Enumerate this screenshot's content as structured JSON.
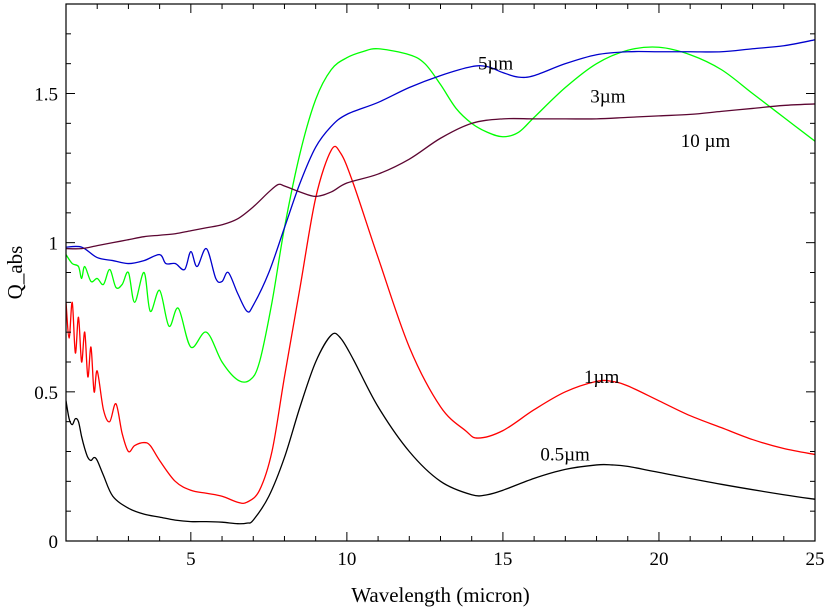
{
  "chart_data": {
    "type": "line",
    "xlabel": "Wavelength (micron)",
    "ylabel": "Q_abs",
    "xlim": [
      1,
      25
    ],
    "ylim": [
      0,
      1.8
    ],
    "grid": false,
    "x_ticks": [
      5,
      10,
      15,
      20,
      25
    ],
    "y_ticks": [
      0,
      0.5,
      1,
      1.5
    ],
    "y_tick_labels": [
      "0",
      "0.5",
      "1",
      "1.5"
    ],
    "x_minor_step": 1,
    "y_minor_step": 0.1,
    "series": [
      {
        "name": "0.5µm",
        "color": "#000000",
        "points": [
          [
            1.0,
            0.47
          ],
          [
            1.1,
            0.41
          ],
          [
            1.2,
            0.39
          ],
          [
            1.3,
            0.41
          ],
          [
            1.4,
            0.4
          ],
          [
            1.5,
            0.35
          ],
          [
            1.6,
            0.31
          ],
          [
            1.7,
            0.28
          ],
          [
            1.8,
            0.27
          ],
          [
            1.9,
            0.28
          ],
          [
            2.0,
            0.27
          ],
          [
            2.2,
            0.22
          ],
          [
            2.5,
            0.15
          ],
          [
            3.0,
            0.11
          ],
          [
            3.5,
            0.09
          ],
          [
            4.0,
            0.08
          ],
          [
            4.5,
            0.07
          ],
          [
            5.0,
            0.065
          ],
          [
            5.5,
            0.065
          ],
          [
            6.0,
            0.063
          ],
          [
            6.5,
            0.058
          ],
          [
            6.8,
            0.06
          ],
          [
            7.0,
            0.07
          ],
          [
            7.5,
            0.15
          ],
          [
            8.0,
            0.28
          ],
          [
            8.5,
            0.45
          ],
          [
            9.0,
            0.6
          ],
          [
            9.5,
            0.69
          ],
          [
            9.8,
            0.68
          ],
          [
            10.2,
            0.61
          ],
          [
            11.0,
            0.45
          ],
          [
            12.0,
            0.3
          ],
          [
            13.0,
            0.2
          ],
          [
            14.0,
            0.155
          ],
          [
            14.5,
            0.155
          ],
          [
            15.0,
            0.17
          ],
          [
            16.0,
            0.21
          ],
          [
            17.0,
            0.24
          ],
          [
            18.0,
            0.255
          ],
          [
            18.5,
            0.255
          ],
          [
            19.0,
            0.25
          ],
          [
            20.0,
            0.23
          ],
          [
            22.0,
            0.19
          ],
          [
            24.0,
            0.155
          ],
          [
            25.0,
            0.14
          ]
        ]
      },
      {
        "name": "1µm",
        "color": "#ff0000",
        "points": [
          [
            1.0,
            0.8
          ],
          [
            1.1,
            0.68
          ],
          [
            1.2,
            0.8
          ],
          [
            1.3,
            0.63
          ],
          [
            1.4,
            0.75
          ],
          [
            1.5,
            0.6
          ],
          [
            1.6,
            0.7
          ],
          [
            1.7,
            0.55
          ],
          [
            1.8,
            0.65
          ],
          [
            1.9,
            0.5
          ],
          [
            2.0,
            0.57
          ],
          [
            2.2,
            0.44
          ],
          [
            2.4,
            0.4
          ],
          [
            2.6,
            0.46
          ],
          [
            2.8,
            0.36
          ],
          [
            3.0,
            0.3
          ],
          [
            3.2,
            0.32
          ],
          [
            3.5,
            0.33
          ],
          [
            3.7,
            0.32
          ],
          [
            4.0,
            0.27
          ],
          [
            4.5,
            0.2
          ],
          [
            5.0,
            0.17
          ],
          [
            5.5,
            0.16
          ],
          [
            6.0,
            0.15
          ],
          [
            6.5,
            0.13
          ],
          [
            6.8,
            0.13
          ],
          [
            7.2,
            0.17
          ],
          [
            7.6,
            0.3
          ],
          [
            8.0,
            0.55
          ],
          [
            8.5,
            0.85
          ],
          [
            9.0,
            1.15
          ],
          [
            9.5,
            1.31
          ],
          [
            9.8,
            1.3
          ],
          [
            10.2,
            1.2
          ],
          [
            11.0,
            0.95
          ],
          [
            12.0,
            0.65
          ],
          [
            13.0,
            0.45
          ],
          [
            13.8,
            0.37
          ],
          [
            14.2,
            0.345
          ],
          [
            15.0,
            0.37
          ],
          [
            16.0,
            0.44
          ],
          [
            17.0,
            0.5
          ],
          [
            18.0,
            0.535
          ],
          [
            18.5,
            0.535
          ],
          [
            19.0,
            0.52
          ],
          [
            20.0,
            0.47
          ],
          [
            21.0,
            0.42
          ],
          [
            22.0,
            0.38
          ],
          [
            23.0,
            0.34
          ],
          [
            24.0,
            0.31
          ],
          [
            25.0,
            0.29
          ]
        ]
      },
      {
        "name": "3µm",
        "color": "#00ff00",
        "points": [
          [
            1.0,
            0.96
          ],
          [
            1.2,
            0.93
          ],
          [
            1.4,
            0.92
          ],
          [
            1.5,
            0.88
          ],
          [
            1.6,
            0.92
          ],
          [
            1.8,
            0.87
          ],
          [
            2.0,
            0.88
          ],
          [
            2.2,
            0.86
          ],
          [
            2.4,
            0.91
          ],
          [
            2.6,
            0.85
          ],
          [
            2.8,
            0.86
          ],
          [
            3.0,
            0.9
          ],
          [
            3.2,
            0.8
          ],
          [
            3.5,
            0.9
          ],
          [
            3.7,
            0.77
          ],
          [
            4.0,
            0.84
          ],
          [
            4.3,
            0.72
          ],
          [
            4.6,
            0.78
          ],
          [
            5.0,
            0.65
          ],
          [
            5.5,
            0.7
          ],
          [
            6.0,
            0.6
          ],
          [
            6.5,
            0.54
          ],
          [
            6.9,
            0.54
          ],
          [
            7.2,
            0.6
          ],
          [
            7.6,
            0.8
          ],
          [
            8.0,
            1.05
          ],
          [
            8.5,
            1.3
          ],
          [
            9.0,
            1.48
          ],
          [
            9.5,
            1.58
          ],
          [
            10.0,
            1.62
          ],
          [
            10.5,
            1.64
          ],
          [
            11.0,
            1.65
          ],
          [
            12.0,
            1.63
          ],
          [
            12.5,
            1.6
          ],
          [
            13.0,
            1.53
          ],
          [
            13.5,
            1.45
          ],
          [
            14.0,
            1.4
          ],
          [
            14.5,
            1.37
          ],
          [
            15.0,
            1.355
          ],
          [
            15.5,
            1.37
          ],
          [
            16.0,
            1.42
          ],
          [
            17.0,
            1.52
          ],
          [
            18.0,
            1.6
          ],
          [
            19.0,
            1.645
          ],
          [
            20.0,
            1.655
          ],
          [
            21.0,
            1.63
          ],
          [
            22.0,
            1.58
          ],
          [
            23.0,
            1.5
          ],
          [
            24.0,
            1.42
          ],
          [
            25.0,
            1.34
          ]
        ]
      },
      {
        "name": "5µm",
        "color": "#0000cd",
        "points": [
          [
            1.0,
            0.985
          ],
          [
            1.5,
            0.985
          ],
          [
            2.0,
            0.95
          ],
          [
            2.5,
            0.94
          ],
          [
            3.0,
            0.93
          ],
          [
            3.5,
            0.94
          ],
          [
            4.0,
            0.96
          ],
          [
            4.2,
            0.93
          ],
          [
            4.5,
            0.93
          ],
          [
            4.8,
            0.91
          ],
          [
            5.0,
            0.97
          ],
          [
            5.2,
            0.92
          ],
          [
            5.5,
            0.98
          ],
          [
            5.8,
            0.88
          ],
          [
            6.0,
            0.87
          ],
          [
            6.2,
            0.9
          ],
          [
            6.5,
            0.83
          ],
          [
            6.8,
            0.77
          ],
          [
            7.0,
            0.79
          ],
          [
            7.5,
            0.9
          ],
          [
            8.0,
            1.05
          ],
          [
            8.5,
            1.2
          ],
          [
            9.0,
            1.32
          ],
          [
            9.5,
            1.39
          ],
          [
            10.0,
            1.43
          ],
          [
            11.0,
            1.47
          ],
          [
            12.0,
            1.52
          ],
          [
            13.0,
            1.56
          ],
          [
            14.0,
            1.59
          ],
          [
            14.5,
            1.59
          ],
          [
            15.0,
            1.57
          ],
          [
            15.5,
            1.555
          ],
          [
            16.0,
            1.56
          ],
          [
            17.0,
            1.6
          ],
          [
            18.0,
            1.63
          ],
          [
            19.0,
            1.64
          ],
          [
            20.0,
            1.64
          ],
          [
            21.0,
            1.64
          ],
          [
            22.0,
            1.64
          ],
          [
            23.0,
            1.65
          ],
          [
            24.0,
            1.66
          ],
          [
            25.0,
            1.68
          ]
        ]
      },
      {
        "name": "10 µm",
        "color": "#5c0632",
        "points": [
          [
            1.0,
            0.98
          ],
          [
            1.5,
            0.98
          ],
          [
            2.0,
            0.99
          ],
          [
            2.5,
            1.0
          ],
          [
            3.0,
            1.01
          ],
          [
            3.5,
            1.02
          ],
          [
            4.0,
            1.025
          ],
          [
            4.5,
            1.03
          ],
          [
            5.0,
            1.04
          ],
          [
            5.5,
            1.05
          ],
          [
            6.0,
            1.06
          ],
          [
            6.5,
            1.08
          ],
          [
            7.0,
            1.12
          ],
          [
            7.5,
            1.17
          ],
          [
            7.8,
            1.195
          ],
          [
            8.0,
            1.19
          ],
          [
            8.5,
            1.17
          ],
          [
            9.0,
            1.155
          ],
          [
            9.5,
            1.17
          ],
          [
            10.0,
            1.2
          ],
          [
            11.0,
            1.23
          ],
          [
            12.0,
            1.28
          ],
          [
            13.0,
            1.35
          ],
          [
            14.0,
            1.4
          ],
          [
            15.0,
            1.415
          ],
          [
            16.0,
            1.415
          ],
          [
            17.0,
            1.415
          ],
          [
            18.0,
            1.415
          ],
          [
            19.0,
            1.42
          ],
          [
            20.0,
            1.425
          ],
          [
            21.0,
            1.43
          ],
          [
            22.0,
            1.44
          ],
          [
            23.0,
            1.45
          ],
          [
            24.0,
            1.46
          ],
          [
            25.0,
            1.465
          ]
        ]
      }
    ],
    "annotations": [
      {
        "text": "5µm",
        "x": 14.2,
        "y": 1.58
      },
      {
        "text": "3µm",
        "x": 17.8,
        "y": 1.47
      },
      {
        "text": "10 µm",
        "x": 20.7,
        "y": 1.32
      },
      {
        "text": "1µm",
        "x": 17.6,
        "y": 0.53
      },
      {
        "text": "0.5µm",
        "x": 16.2,
        "y": 0.27
      }
    ]
  }
}
